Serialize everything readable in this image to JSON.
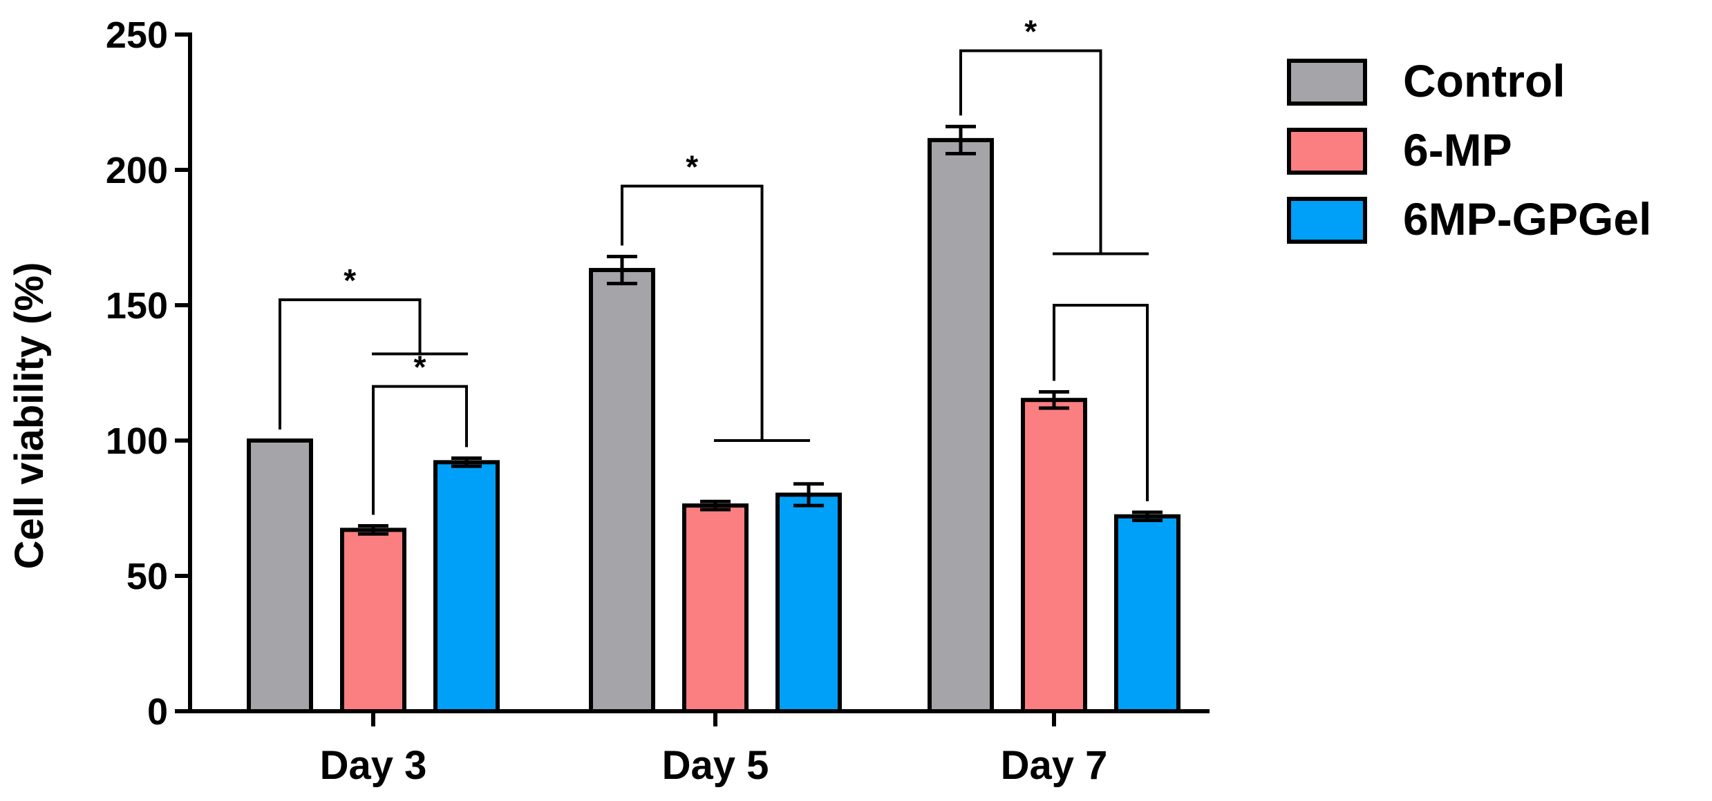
{
  "chart_data": {
    "type": "bar",
    "categories": [
      "Day 3",
      "Day 5",
      "Day 7"
    ],
    "series": [
      {
        "name": "Control",
        "color": "#a5a4a8",
        "values": [
          100,
          163,
          211
        ],
        "errors": [
          0,
          5,
          5
        ]
      },
      {
        "name": "6-MP",
        "color": "#fb7f80",
        "values": [
          67,
          76,
          115
        ],
        "errors": [
          1.5,
          1.5,
          3
        ]
      },
      {
        "name": "6MP-GPGel",
        "color": "#00a0f8",
        "values": [
          92,
          80,
          72
        ],
        "errors": [
          1.5,
          4,
          1.5
        ]
      }
    ],
    "title": "",
    "xlabel": "",
    "ylabel": "Cell viability (%)",
    "ylim": [
      0,
      250
    ],
    "yticks": [
      "0",
      "50",
      "100",
      "150",
      "200",
      "250"
    ],
    "legend_position": "top-right",
    "grid": false,
    "significance": [
      {
        "category": 0,
        "type": "pair",
        "left_series": 0,
        "right_series": [
          1,
          2
        ],
        "label": "*",
        "y": 152,
        "right_bar_y": 132
      },
      {
        "category": 0,
        "type": "pair",
        "left_series": 1,
        "right_series": 2,
        "label": "*",
        "y": 120
      },
      {
        "category": 1,
        "type": "pair",
        "left_series": 0,
        "right_series": [
          1,
          2
        ],
        "label": "*",
        "y": 194,
        "right_bar_y": 100
      },
      {
        "category": 2,
        "type": "pair",
        "left_series": 0,
        "right_series": [
          1,
          2
        ],
        "label": "*",
        "y": 244,
        "right_bar_y": 169
      },
      {
        "category": 2,
        "type": "pair",
        "left_series": 1,
        "right_series": 2,
        "label": "",
        "y": 150
      }
    ]
  }
}
